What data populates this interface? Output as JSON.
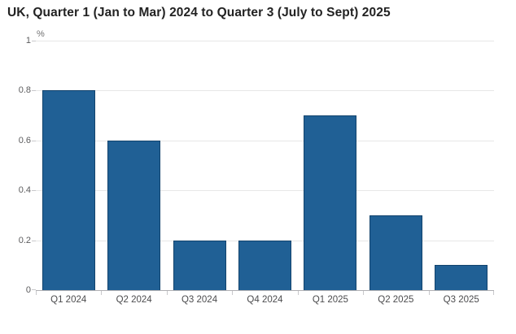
{
  "header": {
    "title": "UK, Quarter 1 (Jan to Mar) 2024 to Quarter 3 (July to Sept) 2025"
  },
  "chart_data": {
    "type": "bar",
    "title": "UK, Quarter 1 (Jan to Mar) 2024 to Quarter 3 (July to Sept) 2025",
    "unit_label": "%",
    "categories": [
      "Q1 2024",
      "Q2 2024",
      "Q3 2024",
      "Q4 2024",
      "Q1 2025",
      "Q2 2025",
      "Q3 2025"
    ],
    "values": [
      0.8,
      0.6,
      0.2,
      0.2,
      0.7,
      0.3,
      0.1
    ],
    "xlabel": "",
    "ylabel": "%",
    "ylim": [
      0,
      1
    ],
    "yticks": [
      0,
      0.2,
      0.4,
      0.6,
      0.8,
      1
    ],
    "ytick_labels": [
      "0",
      "0.2",
      "0.4",
      "0.6",
      "0.8",
      "1"
    ],
    "grid": "horizontal-only",
    "legend": "none",
    "colors": {
      "bar_fill": "#206095",
      "bar_border": "#12436d",
      "gridline": "#e7e7e7",
      "axis_line": "#b0b0b3",
      "tick_mark": "#c8c8cb",
      "x_label_text": "#4c4c4e",
      "y_label_text": "#5b5b5d",
      "title_text": "#222222",
      "background": "#ffffff"
    }
  }
}
